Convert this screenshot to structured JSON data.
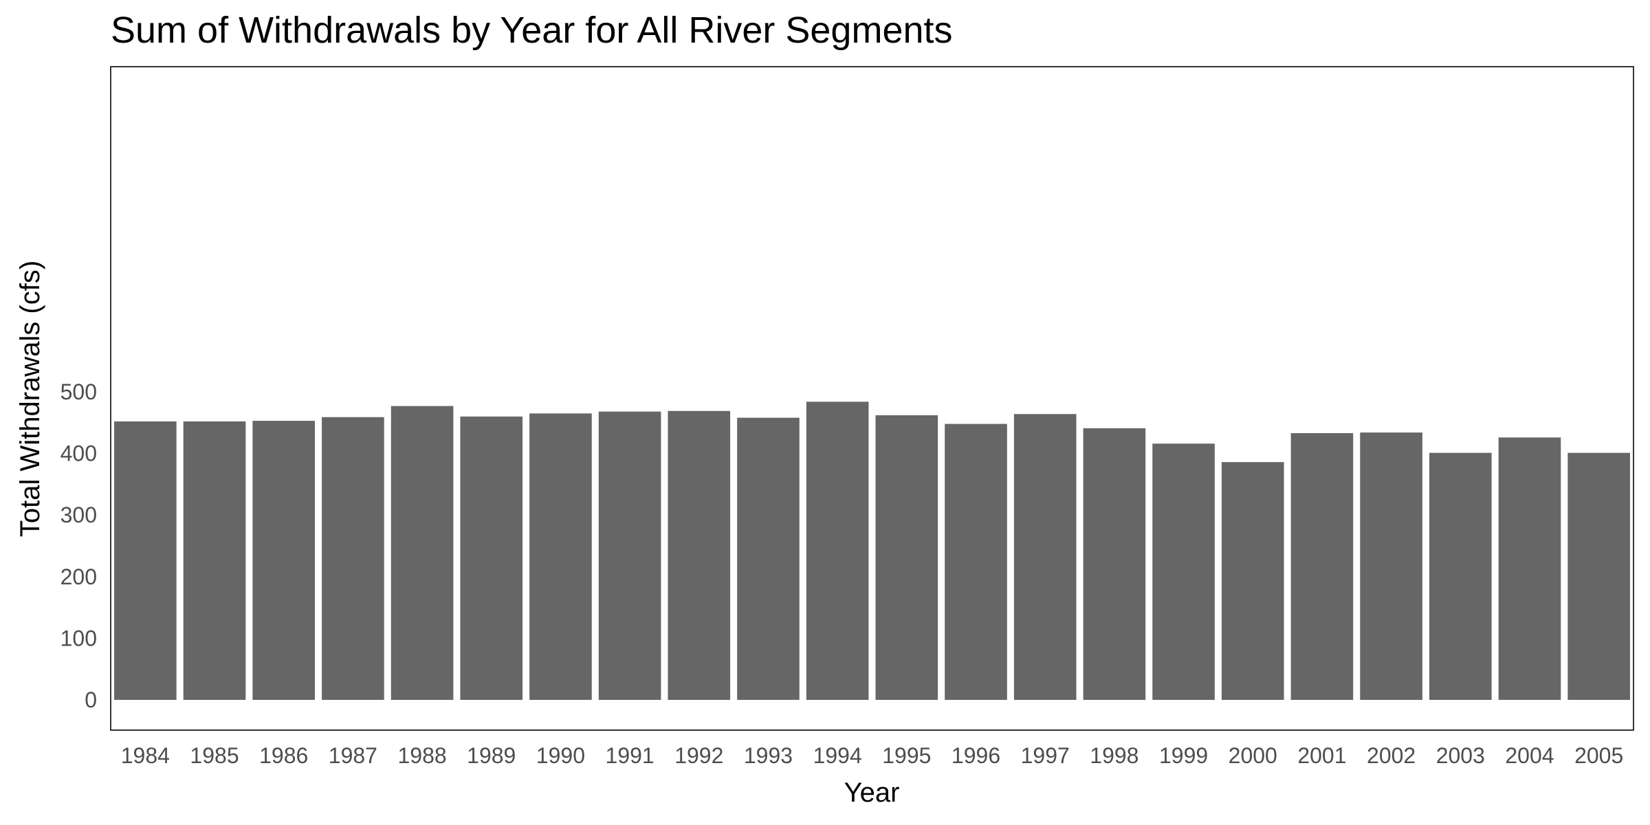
{
  "chart_data": {
    "type": "bar",
    "title": "Sum of Withdrawals by Year for All River Segments",
    "xlabel": "Year",
    "ylabel": "Total Withdrawals (cfs)",
    "categories": [
      "1984",
      "1985",
      "1986",
      "1987",
      "1988",
      "1989",
      "1990",
      "1991",
      "1992",
      "1993",
      "1994",
      "1995",
      "1996",
      "1997",
      "1998",
      "1999",
      "2000",
      "2001",
      "2002",
      "2003",
      "2004",
      "2005"
    ],
    "values": [
      452,
      452,
      453,
      459,
      477,
      460,
      465,
      468,
      469,
      458,
      484,
      462,
      448,
      464,
      441,
      416,
      386,
      433,
      434,
      401,
      426,
      401
    ],
    "ylim": [
      0,
      500
    ],
    "yticks": [
      0,
      100,
      200,
      300,
      400,
      500
    ],
    "grid": false,
    "legend": "none",
    "bar_color": "#666666",
    "panel_border_color": "#333333"
  }
}
